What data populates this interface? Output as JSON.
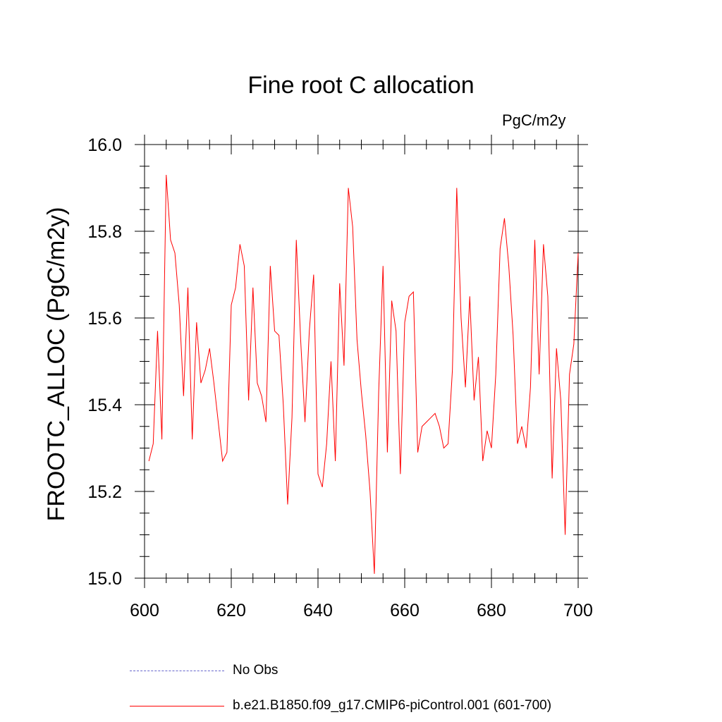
{
  "chart_data": {
    "type": "line",
    "title": "Fine root C allocation",
    "units_label": "PgC/m2y",
    "xlabel": "",
    "ylabel": "FROOTC_ALLOC  (PgC/m2y)",
    "xlim": [
      600,
      700
    ],
    "ylim": [
      15.0,
      16.0
    ],
    "x_ticks": [
      600,
      620,
      640,
      660,
      680,
      700
    ],
    "y_ticks": [
      15.0,
      15.2,
      15.4,
      15.6,
      15.8,
      16.0
    ],
    "y_tick_labels": [
      "15.0",
      "15.2",
      "15.4",
      "15.6",
      "15.8",
      "16.0"
    ],
    "series": [
      {
        "name": "b.e21.B1850.f09_g17.CMIP6-piControl.001 (601-700)",
        "color": "#ff0000",
        "x_start": 601,
        "values": [
          15.27,
          15.31,
          15.57,
          15.32,
          15.93,
          15.78,
          15.75,
          15.63,
          15.42,
          15.67,
          15.32,
          15.59,
          15.45,
          15.48,
          15.53,
          15.45,
          15.36,
          15.27,
          15.29,
          15.63,
          15.67,
          15.77,
          15.72,
          15.41,
          15.67,
          15.45,
          15.42,
          15.36,
          15.72,
          15.57,
          15.56,
          15.4,
          15.17,
          15.37,
          15.78,
          15.55,
          15.36,
          15.57,
          15.7,
          15.24,
          15.21,
          15.31,
          15.5,
          15.27,
          15.68,
          15.49,
          15.9,
          15.81,
          15.55,
          15.43,
          15.33,
          15.2,
          15.01,
          15.43,
          15.72,
          15.29,
          15.64,
          15.57,
          15.24,
          15.59,
          15.65,
          15.66,
          15.29,
          15.35,
          15.36,
          15.37,
          15.38,
          15.35,
          15.3,
          15.31,
          15.48,
          15.9,
          15.6,
          15.44,
          15.65,
          15.41,
          15.51,
          15.27,
          15.34,
          15.3,
          15.47,
          15.76,
          15.83,
          15.72,
          15.56,
          15.31,
          15.35,
          15.3,
          15.44,
          15.78,
          15.47,
          15.77,
          15.65,
          15.23,
          15.53,
          15.41,
          15.1,
          15.47,
          15.54,
          15.75
        ]
      },
      {
        "name": "No Obs",
        "color": "#6666cc",
        "style": "dashed",
        "values": []
      }
    ],
    "legend": [
      {
        "label": "No Obs",
        "style": "dashed"
      },
      {
        "label": "b.e21.B1850.f09_g17.CMIP6-piControl.001 (601-700)",
        "style": "solid"
      }
    ]
  }
}
